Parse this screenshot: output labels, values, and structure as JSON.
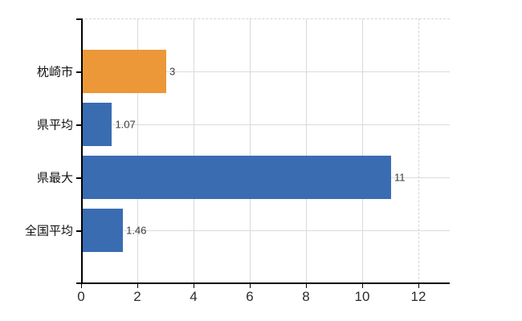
{
  "chart_data": {
    "type": "bar",
    "orientation": "horizontal",
    "title": "",
    "categories": [
      "枕崎市",
      "県平均",
      "県最大",
      "全国平均"
    ],
    "values": [
      3,
      1.07,
      11,
      1.46
    ],
    "value_labels": [
      "3",
      "1.07",
      "11",
      "1.46"
    ],
    "series_colors": [
      "#EC9838",
      "#3A6CB2",
      "#3A6CB2",
      "#3A6CB2"
    ],
    "x_ticks": [
      0,
      2,
      4,
      6,
      8,
      10,
      12
    ],
    "x_tick_labels": [
      "0",
      "2",
      "4",
      "6",
      "8",
      "10",
      "12"
    ],
    "xlim": [
      0,
      13.1
    ],
    "grid": true,
    "legend": false,
    "colors": {
      "highlight_bar": "#EC9838",
      "default_bar": "#3A6CB2",
      "axis": "#000000",
      "gridline_vertical": "#d9d9d9",
      "gridline_horizontal": "#d6ddd6",
      "value_text": "#3a3a3a",
      "tick_text": "#2b2b2b",
      "category_text": "#111111",
      "background": "#ffffff"
    }
  }
}
